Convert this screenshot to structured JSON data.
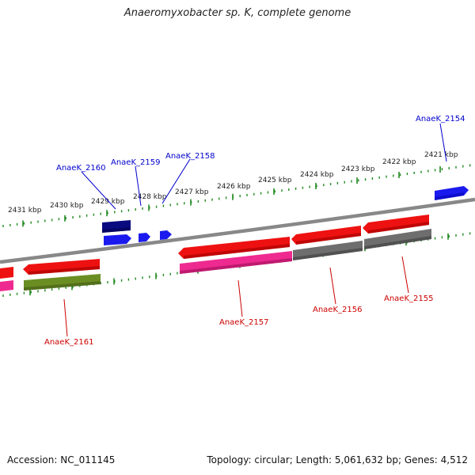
{
  "title": "Anaeromyxobacter sp. K, complete genome",
  "footer": {
    "accession": "Accession: NC_011145",
    "summary": "Topology: circular; Length: 5,061,632 bp; Genes: 4,512"
  },
  "scale": {
    "unit": "kbp",
    "ticks": [
      "2431 kbp",
      "2430 kbp",
      "2429 kbp",
      "2428 kbp",
      "2427 kbp",
      "2426 kbp",
      "2425 kbp",
      "2424 kbp",
      "2423 kbp",
      "2422 kbp",
      "2421 kbp"
    ]
  },
  "colors": {
    "backbone": "#808080",
    "forward_label": "#0000cc",
    "reverse_label": "#cc0000",
    "red": "#ee1111",
    "magenta": "#ee2a90",
    "olive": "#6b8e23",
    "gray": "#6e6e6e",
    "navy": "#0a0a80",
    "blue": "#1a1aee",
    "tick": "#228b22"
  },
  "genes": {
    "forward": [
      {
        "id": "AnaeK_2154",
        "label": "AnaeK_2154"
      },
      {
        "id": "AnaeK_2158",
        "label": "AnaeK_2158"
      },
      {
        "id": "AnaeK_2159",
        "label": "AnaeK_2159"
      },
      {
        "id": "AnaeK_2160",
        "label": "AnaeK_2160"
      }
    ],
    "reverse": [
      {
        "id": "AnaeK_2155",
        "label": "AnaeK_2155"
      },
      {
        "id": "AnaeK_2156",
        "label": "AnaeK_2156"
      },
      {
        "id": "AnaeK_2157",
        "label": "AnaeK_2157"
      },
      {
        "id": "AnaeK_2161",
        "label": "AnaeK_2161"
      }
    ]
  }
}
